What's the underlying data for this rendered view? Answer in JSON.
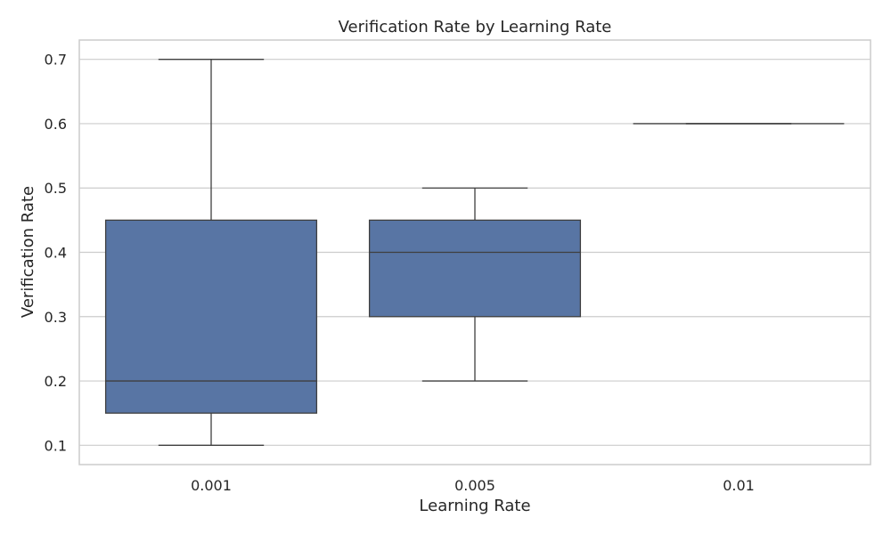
{
  "chart_data": {
    "type": "box",
    "title": "Verification Rate by Learning Rate",
    "xlabel": "Learning Rate",
    "ylabel": "Verification Rate",
    "ylim": [
      0.07,
      0.73
    ],
    "yticks": [
      "0.1",
      "0.2",
      "0.3",
      "0.4",
      "0.5",
      "0.6",
      "0.7"
    ],
    "grid": true,
    "box_color": "#5875a4",
    "line_color": "#3f3f3f",
    "categories": [
      "0.001",
      "0.005",
      "0.01"
    ],
    "boxes": [
      {
        "category": "0.001",
        "min": 0.1,
        "q1": 0.15,
        "median": 0.2,
        "q3": 0.45,
        "max": 0.7
      },
      {
        "category": "0.005",
        "min": 0.2,
        "q1": 0.3,
        "median": 0.4,
        "q3": 0.45,
        "max": 0.5
      },
      {
        "category": "0.01",
        "min": 0.6,
        "q1": 0.6,
        "median": 0.6,
        "q3": 0.6,
        "max": 0.6
      }
    ]
  }
}
